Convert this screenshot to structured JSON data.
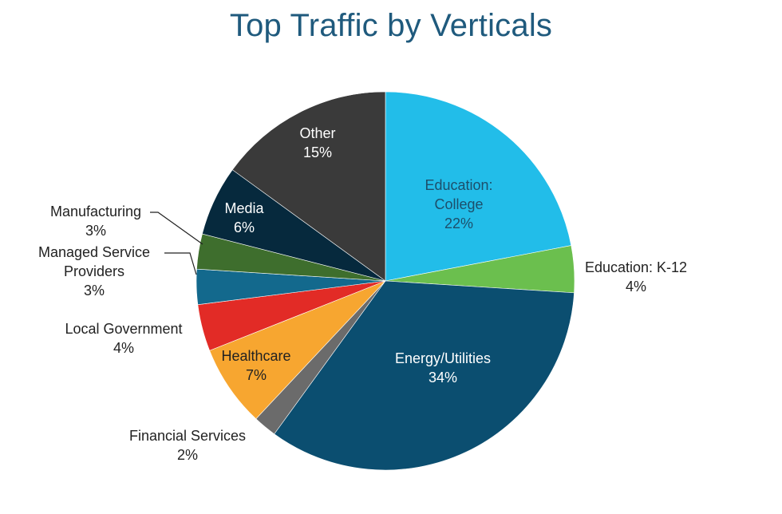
{
  "chart_data": {
    "type": "pie",
    "title": "Top Traffic by Verticals",
    "slices": [
      {
        "name": "Education: College",
        "value": 22,
        "label_lines": [
          "Education:",
          "College"
        ],
        "pct_label": "22%",
        "color": "#22bde9",
        "label_inside": true,
        "label_color": "#1d4f6b"
      },
      {
        "name": "Education: K-12",
        "value": 4,
        "label_lines": [
          "Education: K-12"
        ],
        "pct_label": "4%",
        "color": "#6bbf4e",
        "label_inside": false,
        "label_color": "#222222"
      },
      {
        "name": "Energy/Utilities",
        "value": 34,
        "label_lines": [
          "Energy/Utilities"
        ],
        "pct_label": "34%",
        "color": "#0b4e70",
        "label_inside": true,
        "label_color": "#ffffff"
      },
      {
        "name": "Financial Services",
        "value": 2,
        "label_lines": [
          "Financial Services"
        ],
        "pct_label": "2%",
        "color": "#6b6b6b",
        "label_inside": false,
        "label_color": "#222222"
      },
      {
        "name": "Healthcare",
        "value": 7,
        "label_lines": [
          "Healthcare"
        ],
        "pct_label": "7%",
        "color": "#f7a630",
        "label_inside": true,
        "label_color": "#222222"
      },
      {
        "name": "Local Government",
        "value": 4,
        "label_lines": [
          "Local Government"
        ],
        "pct_label": "4%",
        "color": "#e22b26",
        "label_inside": false,
        "label_color": "#222222"
      },
      {
        "name": "Managed Service Providers",
        "value": 3,
        "label_lines": [
          "Managed Service",
          "Providers"
        ],
        "pct_label": "3%",
        "color": "#13698d",
        "label_inside": false,
        "label_color": "#222222"
      },
      {
        "name": "Manufacturing",
        "value": 3,
        "label_lines": [
          "Manufacturing"
        ],
        "pct_label": "3%",
        "color": "#3e6e2d",
        "label_inside": false,
        "label_color": "#222222"
      },
      {
        "name": "Media",
        "value": 6,
        "label_lines": [
          "Media"
        ],
        "pct_label": "6%",
        "color": "#06293d",
        "label_inside": true,
        "label_color": "#ffffff"
      },
      {
        "name": "Other",
        "value": 15,
        "label_lines": [
          "Other"
        ],
        "pct_label": "15%",
        "color": "#3a3a3a",
        "label_inside": true,
        "label_color": "#ffffff"
      }
    ],
    "start_angle_deg": 0,
    "direction": "clockwise",
    "legend": "none"
  }
}
